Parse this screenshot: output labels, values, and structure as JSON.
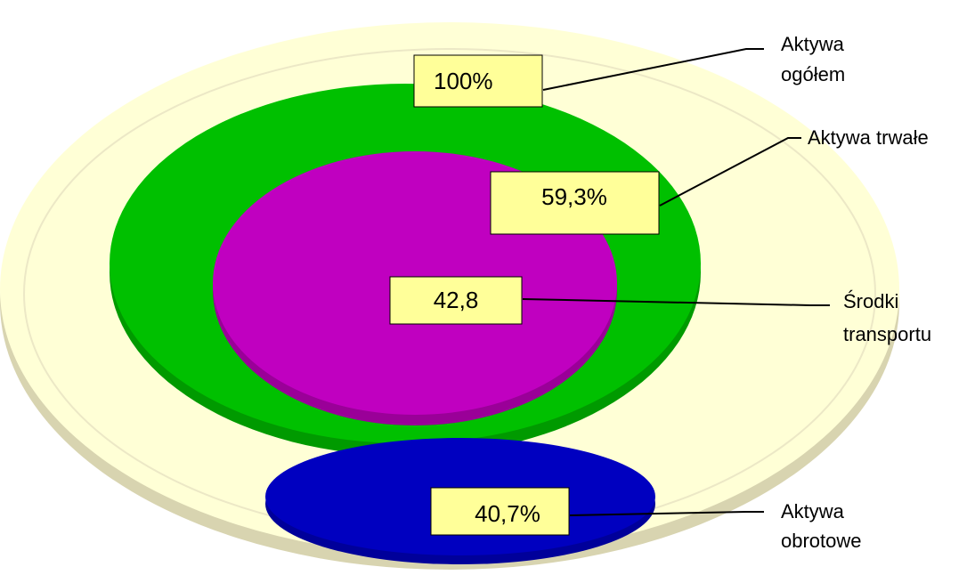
{
  "diagram": {
    "colors": {
      "background": "#ffffff",
      "outer_fill": "#ffffd6",
      "outer_rim": "#d8d4b0",
      "fixed_fill": "#00c000",
      "fixed_rim": "#009a00",
      "transport_fill": "#c000c0",
      "transport_rim": "#9a0098",
      "current_fill": "#0000c0",
      "current_rim": "#00009a",
      "value_box_fill": "#ffff99",
      "leader_line": "#000000"
    },
    "regions": [
      {
        "id": "total",
        "value": "100%",
        "label_lines": [
          "Aktywa",
          "ogółem"
        ]
      },
      {
        "id": "fixed",
        "value": "59,3%",
        "label_lines": [
          "Aktywa trwałe"
        ]
      },
      {
        "id": "transport",
        "value": "42,8",
        "label_lines": [
          "Środki",
          "transportu"
        ]
      },
      {
        "id": "current",
        "value": "40,7%",
        "label_lines": [
          "Aktywa",
          "obrotowe"
        ]
      }
    ]
  }
}
